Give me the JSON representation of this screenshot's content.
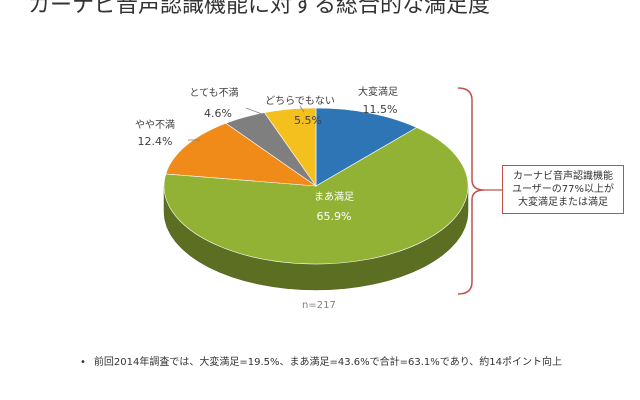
{
  "title": "カーナビ音声認識機能に対する総合的な満足度",
  "sample_size": "n=217",
  "callout": {
    "lines": [
      "カーナビ音声認識機能",
      "ユーザーの77%以上が",
      "大変満足または満足"
    ]
  },
  "footnote": "前回2014年調査では、大変満足=19.5%、まあ満足=43.6%で合計=63.1%であり、約14ポイント向上",
  "colors": {
    "bracket": "#c0504d"
  },
  "chart_data": {
    "type": "pie",
    "style": "3d",
    "slices": [
      {
        "name": "大変満足",
        "value": 11.5,
        "label": "11.5%",
        "color": "#2e75b6"
      },
      {
        "name": "まあ満足",
        "value": 65.9,
        "label": "65.9%",
        "color": "#92b236"
      },
      {
        "name": "やや不満",
        "value": 12.4,
        "label": "12.4%",
        "color": "#f08a18"
      },
      {
        "name": "とても不満",
        "value": 4.6,
        "label": "4.6%",
        "color": "#7f7f7f"
      },
      {
        "name": "どちらでもない",
        "value": 5.5,
        "label": "5.5%",
        "color": "#f4c01e"
      }
    ]
  }
}
